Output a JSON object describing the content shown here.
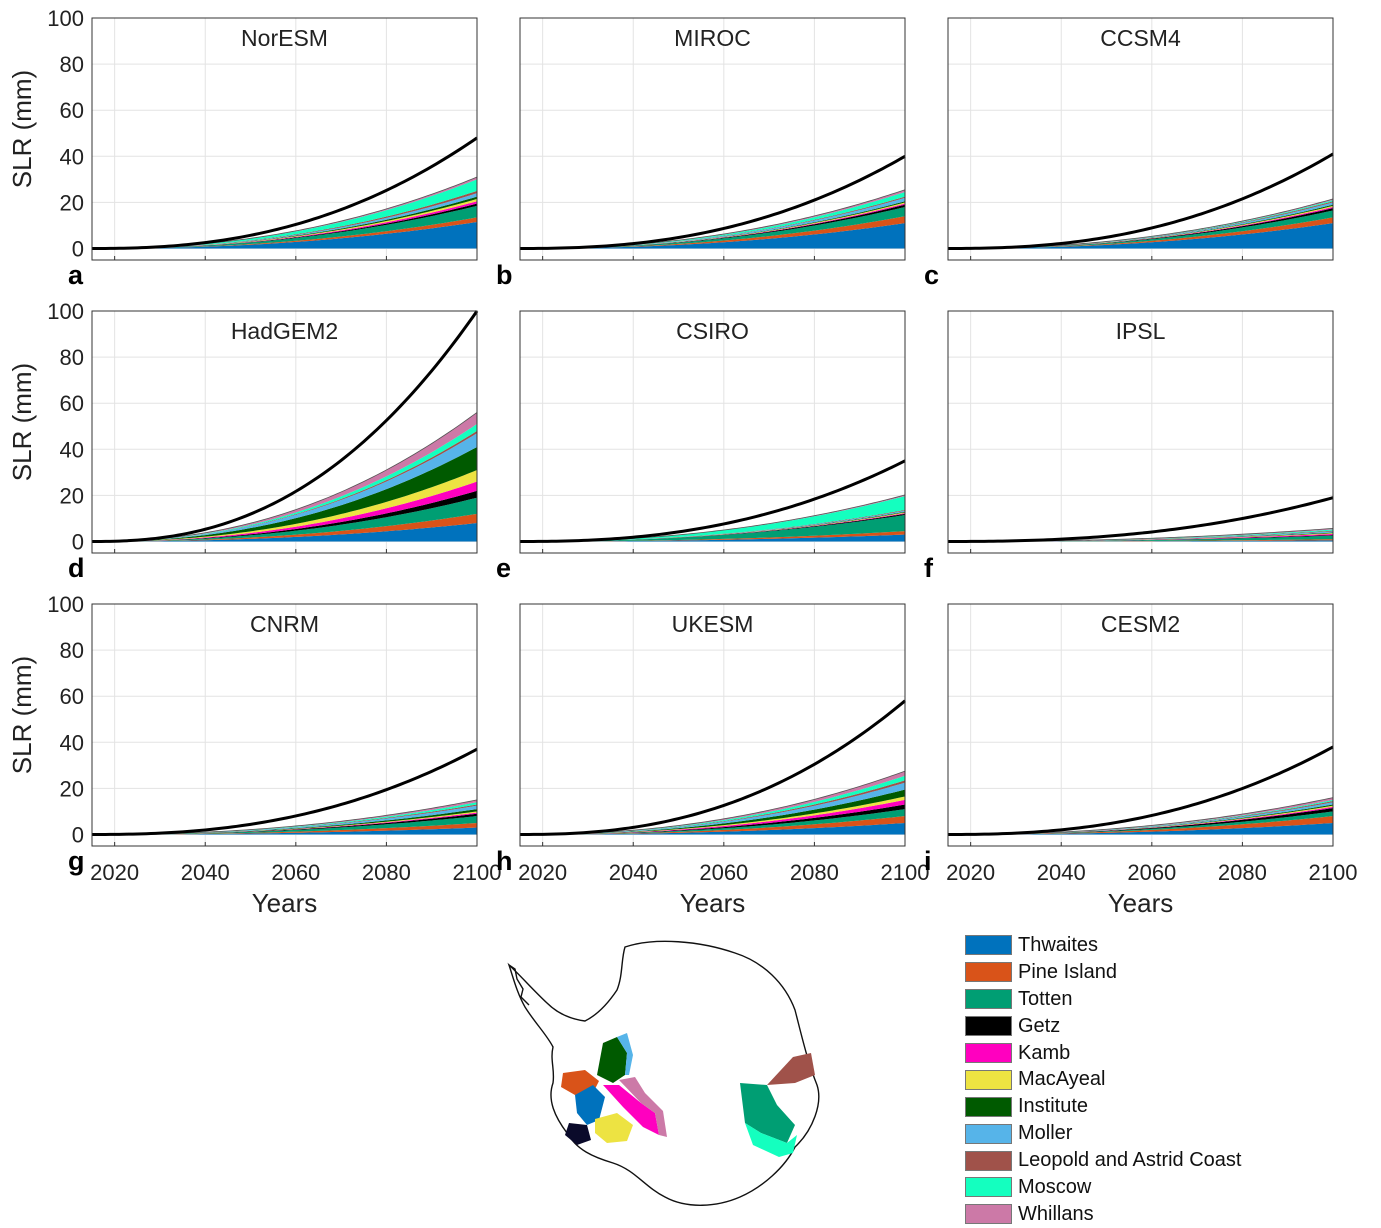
{
  "figure": {
    "ylabel": "SLR (mm)",
    "xlabel": "Years"
  },
  "colors": {
    "Thwaites": "#0072bd",
    "Pine Island": "#d95319",
    "Totten": "#009e73",
    "Getz": "#000000",
    "Kamb": "#ff00bf",
    "MacAyeal": "#ede342",
    "Institute": "#005a00",
    "Moller": "#56b4e9",
    "Leopold and Astrid Coast": "#a0524a",
    "Moscow": "#14ffbf",
    "Whillans": "#cc79a7",
    "total": "#000000"
  },
  "legend": {
    "items": [
      {
        "label": "Thwaites",
        "color": "#0072bd"
      },
      {
        "label": "Pine Island",
        "color": "#d95319"
      },
      {
        "label": "Totten",
        "color": "#009e73"
      },
      {
        "label": "Getz",
        "color": "#000000"
      },
      {
        "label": "Kamb",
        "color": "#ff00bf"
      },
      {
        "label": "MacAyeal",
        "color": "#ede342"
      },
      {
        "label": "Institute",
        "color": "#005a00"
      },
      {
        "label": "Moller",
        "color": "#56b4e9"
      },
      {
        "label": "Leopold and Astrid Coast",
        "color": "#a0524a"
      },
      {
        "label": "Moscow",
        "color": "#14ffbf"
      },
      {
        "label": "Whillans",
        "color": "#cc79a7"
      }
    ]
  },
  "chart_data": [
    {
      "type": "area",
      "title": "NorESM",
      "panel_label": "a",
      "xlim": [
        2015,
        2100
      ],
      "ylim": [
        -5,
        100
      ],
      "xticks": [
        2020,
        2040,
        2060,
        2080,
        2100
      ],
      "yticks": [
        0,
        20,
        40,
        60,
        80,
        100
      ],
      "grid": true,
      "series_names": [
        "Thwaites",
        "Pine Island",
        "Totten",
        "Getz",
        "Kamb",
        "MacAyeal",
        "Institute",
        "Moller",
        "Leopold and Astrid Coast",
        "Moscow",
        "Whillans"
      ],
      "final_values": [
        11.5,
        2,
        5,
        1,
        1,
        1,
        1,
        1.5,
        1,
        5,
        1
      ],
      "total_final": 48
    },
    {
      "type": "area",
      "title": "MIROC",
      "panel_label": "b",
      "xlim": [
        2015,
        2100
      ],
      "ylim": [
        -5,
        100
      ],
      "xticks": [
        2020,
        2040,
        2060,
        2080,
        2100
      ],
      "yticks": [
        0,
        20,
        40,
        60,
        80,
        100
      ],
      "grid": true,
      "series_names": [
        "Thwaites",
        "Pine Island",
        "Totten",
        "Getz",
        "Kamb",
        "MacAyeal",
        "Institute",
        "Moller",
        "Leopold and Astrid Coast",
        "Moscow",
        "Whillans"
      ],
      "final_values": [
        11,
        3,
        4,
        1,
        0.5,
        0.5,
        0.5,
        1.5,
        0.5,
        2,
        1
      ],
      "total_final": 40
    },
    {
      "type": "area",
      "title": "CCSM4",
      "panel_label": "c",
      "xlim": [
        2015,
        2100
      ],
      "ylim": [
        -5,
        100
      ],
      "xticks": [
        2020,
        2040,
        2060,
        2080,
        2100
      ],
      "yticks": [
        0,
        20,
        40,
        60,
        80,
        100
      ],
      "grid": true,
      "series_names": [
        "Thwaites",
        "Pine Island",
        "Totten",
        "Getz",
        "Kamb",
        "MacAyeal",
        "Institute",
        "Moller",
        "Leopold and Astrid Coast",
        "Moscow",
        "Whillans"
      ],
      "final_values": [
        11,
        2.5,
        3,
        1,
        0.5,
        0.5,
        0.5,
        1,
        0.5,
        0.5,
        0.5
      ],
      "total_final": 41
    },
    {
      "type": "area",
      "title": "HadGEM2",
      "panel_label": "d",
      "xlim": [
        2015,
        2100
      ],
      "ylim": [
        -5,
        100
      ],
      "xticks": [
        2020,
        2040,
        2060,
        2080,
        2100
      ],
      "yticks": [
        0,
        20,
        40,
        60,
        80,
        100
      ],
      "grid": true,
      "series_names": [
        "Thwaites",
        "Pine Island",
        "Totten",
        "Getz",
        "Kamb",
        "MacAyeal",
        "Institute",
        "Moller",
        "Leopold and Astrid Coast",
        "Moscow",
        "Whillans"
      ],
      "final_values": [
        8,
        4,
        7,
        3,
        4,
        5,
        10,
        6,
        1,
        3,
        5
      ],
      "total_final": 100
    },
    {
      "type": "area",
      "title": "CSIRO",
      "panel_label": "e",
      "xlim": [
        2015,
        2100
      ],
      "ylim": [
        -5,
        100
      ],
      "xticks": [
        2020,
        2040,
        2060,
        2080,
        2100
      ],
      "yticks": [
        0,
        20,
        40,
        60,
        80,
        100
      ],
      "grid": true,
      "series_names": [
        "Thwaites",
        "Pine Island",
        "Totten",
        "Getz",
        "Kamb",
        "MacAyeal",
        "Institute",
        "Moller",
        "Leopold and Astrid Coast",
        "Moscow",
        "Whillans"
      ],
      "final_values": [
        3,
        1.5,
        7,
        0.5,
        0.3,
        0.3,
        0.3,
        0.5,
        0.3,
        6,
        0.5
      ],
      "total_final": 35
    },
    {
      "type": "area",
      "title": "IPSL",
      "panel_label": "f",
      "xlim": [
        2015,
        2100
      ],
      "ylim": [
        -5,
        100
      ],
      "xticks": [
        2020,
        2040,
        2060,
        2080,
        2100
      ],
      "yticks": [
        0,
        20,
        40,
        60,
        80,
        100
      ],
      "grid": true,
      "series_names": [
        "Thwaites",
        "Pine Island",
        "Totten",
        "Getz",
        "Kamb",
        "MacAyeal",
        "Institute",
        "Moller",
        "Leopold and Astrid Coast",
        "Moscow",
        "Whillans"
      ],
      "final_values": [
        0.5,
        0.5,
        1.5,
        0.3,
        0.5,
        0.3,
        0.3,
        0.5,
        0.3,
        0.5,
        0.5
      ],
      "total_final": 19
    },
    {
      "type": "area",
      "title": "CNRM",
      "panel_label": "g",
      "xlim": [
        2015,
        2100
      ],
      "ylim": [
        -5,
        100
      ],
      "xticks": [
        2020,
        2040,
        2060,
        2080,
        2100
      ],
      "yticks": [
        0,
        20,
        40,
        60,
        80,
        100
      ],
      "grid": true,
      "series_names": [
        "Thwaites",
        "Pine Island",
        "Totten",
        "Getz",
        "Kamb",
        "MacAyeal",
        "Institute",
        "Moller",
        "Leopold and Astrid Coast",
        "Moscow",
        "Whillans"
      ],
      "final_values": [
        3,
        2,
        3,
        1,
        0.5,
        0.5,
        1,
        1.5,
        0.5,
        1,
        1
      ],
      "total_final": 37
    },
    {
      "type": "area",
      "title": "UKESM",
      "panel_label": "h",
      "xlim": [
        2015,
        2100
      ],
      "ylim": [
        -5,
        100
      ],
      "xticks": [
        2020,
        2040,
        2060,
        2080,
        2100
      ],
      "yticks": [
        0,
        20,
        40,
        60,
        80,
        100
      ],
      "grid": true,
      "series_names": [
        "Thwaites",
        "Pine Island",
        "Totten",
        "Getz",
        "Kamb",
        "MacAyeal",
        "Institute",
        "Moller",
        "Leopold and Astrid Coast",
        "Moscow",
        "Whillans"
      ],
      "final_values": [
        5,
        3,
        3,
        2,
        2,
        1.5,
        3,
        3,
        1,
        2,
        2
      ],
      "total_final": 58
    },
    {
      "type": "area",
      "title": "CESM2",
      "panel_label": "i",
      "xlim": [
        2015,
        2100
      ],
      "ylim": [
        -5,
        100
      ],
      "xticks": [
        2020,
        2040,
        2060,
        2080,
        2100
      ],
      "yticks": [
        0,
        20,
        40,
        60,
        80,
        100
      ],
      "grid": true,
      "series_names": [
        "Thwaites",
        "Pine Island",
        "Totten",
        "Getz",
        "Kamb",
        "MacAyeal",
        "Institute",
        "Moller",
        "Leopold and Astrid Coast",
        "Moscow",
        "Whillans"
      ],
      "final_values": [
        5,
        3,
        2,
        1.5,
        0.5,
        0.5,
        0.5,
        1,
        0.5,
        0.5,
        1
      ],
      "total_final": 38
    }
  ]
}
